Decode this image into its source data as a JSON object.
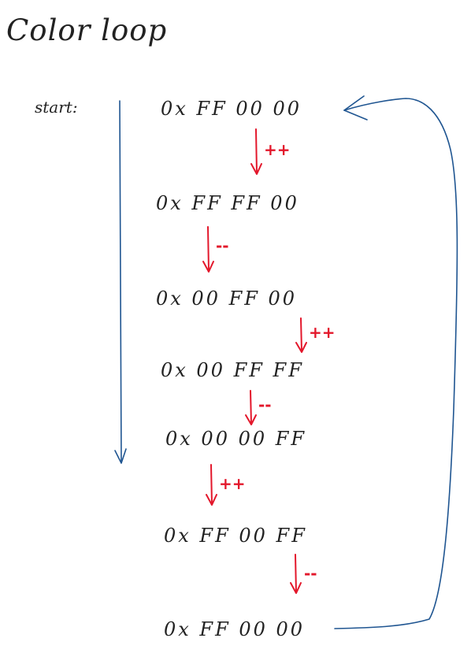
{
  "title": "Color loop",
  "start_label": "start:",
  "colors": {
    "ink": "#222222",
    "flow_arrow": "#1f5591",
    "step_arrow": "#e3172b"
  },
  "steps": [
    {
      "value": "0x FF 00 00"
    },
    {
      "value": "0x FF FF 00"
    },
    {
      "value": "0x 00 FF 00"
    },
    {
      "value": "0x 00 FF FF"
    },
    {
      "value": "0x 00 00 FF"
    },
    {
      "value": "0x FF 00 FF"
    },
    {
      "value": "0x FF 00 00"
    }
  ],
  "transitions": [
    {
      "op": "++"
    },
    {
      "op": "--"
    },
    {
      "op": "++"
    },
    {
      "op": "--"
    },
    {
      "op": "++"
    },
    {
      "op": "--"
    }
  ]
}
